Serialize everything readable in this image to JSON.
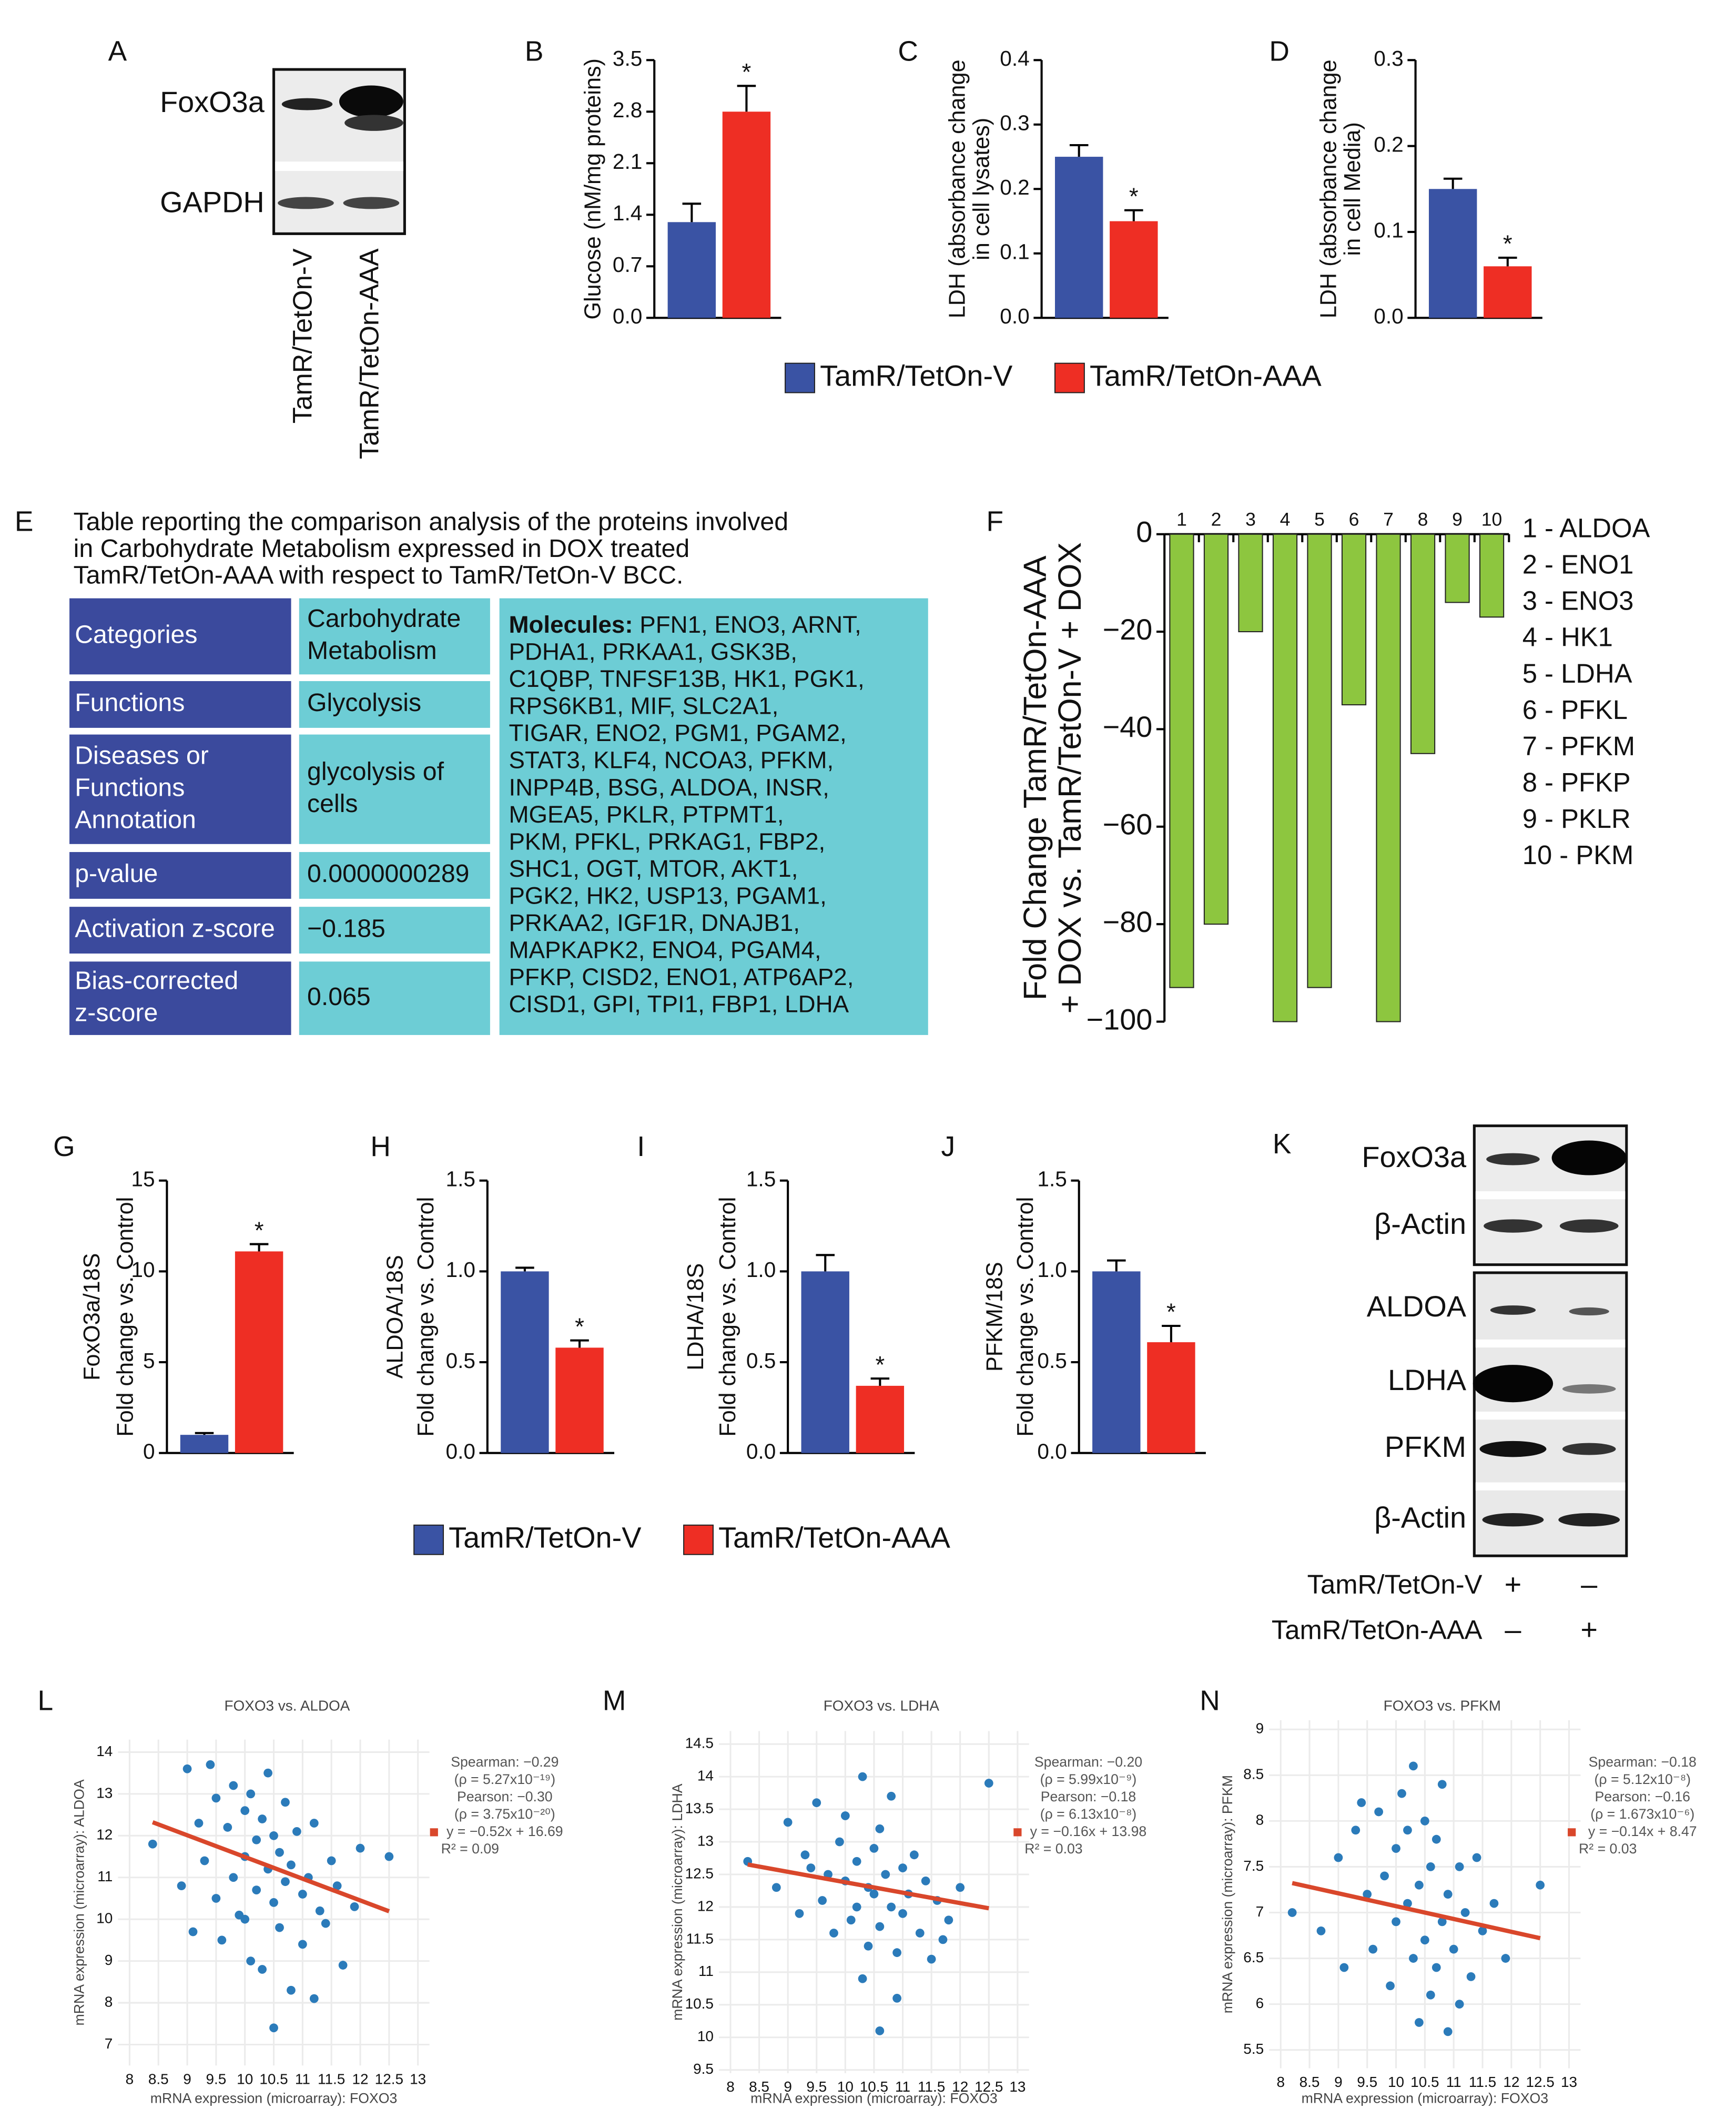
{
  "legend": [
    {
      "name": "TamR/TetOn-V",
      "color": "#3a53a4"
    },
    {
      "name": "TamR/TetOn-AAA",
      "color": "#ee2e24"
    }
  ],
  "blot_a": {
    "label": "A",
    "bands": [
      "FoxO3a",
      "GAPDH"
    ]
  },
  "blot_k": {
    "label": "K",
    "bands": [
      "FoxO3a",
      "β-Actin",
      "ALDOA",
      "LDHA",
      "PFKM",
      "β-Actin"
    ],
    "signs": [
      [
        "+",
        "–"
      ],
      [
        "–",
        "+"
      ]
    ]
  },
  "table": {
    "label": "E",
    "caption": [
      "Table reporting the comparison analysis of the proteins involved",
      "in Carbohydrate Metabolism expressed in DOX treated",
      "TamR/TetOn-AAA with respect to TamR/TetOn-V BCC."
    ],
    "rows": [
      {
        "name": [
          "Categories"
        ],
        "value": [
          "Carbohydrate",
          "Metabolism"
        ]
      },
      {
        "name": [
          "Functions"
        ],
        "value": [
          "Glycolysis"
        ]
      },
      {
        "name": [
          "Diseases or",
          "Functions",
          "Annotation"
        ],
        "value": [
          "glycolysis of",
          "cells"
        ]
      },
      {
        "name": [
          "p-value"
        ],
        "value": [
          "0.0000000289"
        ]
      },
      {
        "name": [
          "Activation z-score"
        ],
        "value": [
          "−0.185"
        ]
      },
      {
        "name": [
          "Bias-corrected",
          "z-score"
        ],
        "value": [
          "0.065"
        ]
      }
    ],
    "molecules_heading": "Molecules:",
    "molecules": [
      " PFN1, ENO3, ARNT,",
      "PDHA1, PRKAA1, GSK3B,",
      "C1QBP, TNFSF13B, HK1, PGK1,",
      "RPS6KB1,  MIF, SLC2A1,",
      "TIGAR, ENO2, PGM1, PGAM2,",
      "STAT3, KLF4, NCOA3, PFKM,",
      "INPP4B, BSG,  ALDOA, INSR,",
      "MGEA5, PKLR, PTPMT1,",
      "PKM, PFKL, PRKAG1, FBP2,",
      "SHC1, OGT, MTOR, AKT1,",
      "PGK2, HK2, USP13, PGAM1,",
      "PRKAA2, IGF1R, DNAJB1,",
      "MAPKAPK2, ENO4, PGAM4,",
      "PFKP, CISD2, ENO1, ATP6AP2,",
      "CISD1, GPI, TPI1, FBP1, LDHA"
    ]
  },
  "chart_data": [
    {
      "type": "bar",
      "label": "B",
      "ylabel": [
        "Glucose (nM/mg proteins)"
      ],
      "values": [
        1.3,
        2.8
      ],
      "errors": [
        0.25,
        0.35
      ],
      "annotation": "*",
      "ylim": [
        0,
        3.5
      ],
      "yticks": [
        {
          "value": 0,
          "label": "0.0"
        },
        0.7,
        1.4,
        2.1,
        2.8,
        3.5
      ]
    },
    {
      "type": "bar",
      "label": "C",
      "ylabel": [
        "LDH (absorbance change",
        "in cell lysates)"
      ],
      "values": [
        0.25,
        0.15
      ],
      "errors": [
        0.018,
        0.017
      ],
      "annotation": "*",
      "ylim": [
        0,
        0.4
      ],
      "yticks": [
        {
          "value": 0,
          "label": "0.0"
        },
        0.1,
        0.2,
        0.3,
        0.4
      ]
    },
    {
      "type": "bar",
      "label": "D",
      "ylabel": [
        "LDH (absorbance change",
        "in cell Media)"
      ],
      "values": [
        0.15,
        0.06
      ],
      "errors": [
        0.012,
        0.01
      ],
      "annotation": "*",
      "ylim": [
        0,
        0.3
      ],
      "yticks": [
        {
          "value": 0,
          "label": "0.0"
        },
        0.1,
        0.2,
        0.3
      ]
    },
    {
      "type": "bar",
      "label": "F",
      "ylabel": [
        "Fold Change TamR/TetOn-AAA",
        "+ DOX vs. TamR/TetOn-V + DOX"
      ],
      "categories": [
        "1",
        "2",
        "3",
        "4",
        "5",
        "6",
        "7",
        "8",
        "9",
        "10"
      ],
      "values": [
        -93,
        -80,
        -20,
        -100,
        -93,
        -35,
        -100,
        -45,
        -14,
        -17
      ],
      "color": "#8dc63f",
      "key": [
        "1 - ALDOA",
        "2 - ENO1",
        "3 - ENO3",
        "4 - HK1",
        "5 - LDHA",
        "6 - PFKL",
        "7 - PFKM",
        "8 - PFKP",
        "9 - PKLR",
        "10 - PKM"
      ],
      "ylim": [
        -100,
        0
      ],
      "yticks": [
        0,
        {
          "value": -20,
          "label": "−20"
        },
        {
          "value": -40,
          "label": "−40"
        },
        {
          "value": -60,
          "label": "−60"
        },
        {
          "value": -80,
          "label": "−80"
        },
        {
          "value": -100,
          "label": "−100"
        }
      ]
    },
    {
      "type": "bar",
      "label": "G",
      "ylabel": [
        "FoxO3a/18S",
        "Fold change vs. Control"
      ],
      "values": [
        1.0,
        11.1
      ],
      "errors": [
        0.1,
        0.4
      ],
      "annotation": "*",
      "ylim": [
        0,
        15
      ],
      "yticks": [
        0,
        5,
        10,
        15
      ]
    },
    {
      "type": "bar",
      "label": "H",
      "ylabel": [
        "ALDOA/18S",
        "Fold change vs. Control"
      ],
      "values": [
        1.0,
        0.58
      ],
      "errors": [
        0.02,
        0.04
      ],
      "annotation": "*",
      "ylim": [
        0,
        1.5
      ],
      "yticks": [
        {
          "value": 0,
          "label": "0.0"
        },
        0.5,
        {
          "value": 1,
          "label": "1.0"
        },
        1.5
      ]
    },
    {
      "type": "bar",
      "label": "I",
      "ylabel": [
        "LDHA/18S",
        "Fold change vs. Control"
      ],
      "values": [
        1.0,
        0.37
      ],
      "errors": [
        0.09,
        0.04
      ],
      "annotation": "*",
      "ylim": [
        0,
        1.5
      ],
      "yticks": [
        {
          "value": 0,
          "label": "0.0"
        },
        0.5,
        {
          "value": 1,
          "label": "1.0"
        },
        1.5
      ]
    },
    {
      "type": "bar",
      "label": "J",
      "ylabel": [
        "PFKM/18S",
        "Fold change vs. Control"
      ],
      "values": [
        1.0,
        0.61
      ],
      "errors": [
        0.06,
        0.09
      ],
      "annotation": "*",
      "ylim": [
        0,
        1.5
      ],
      "yticks": [
        {
          "value": 0,
          "label": "0.0"
        },
        0.5,
        {
          "value": 1,
          "label": "1.0"
        },
        1.5
      ]
    },
    {
      "type": "scatter",
      "label": "L",
      "title": "FOXO3 vs. ALDOA",
      "xlabel": "mRNA expression (microarray): FOXO3",
      "ylabel": "mRNA expression (microarray): ALDOA",
      "color": "#2b7bba",
      "grid": true,
      "x": [
        8.4,
        8.9,
        9.0,
        9.2,
        9.3,
        9.4,
        9.5,
        9.5,
        9.6,
        9.7,
        9.8,
        9.8,
        9.9,
        10.0,
        10.0,
        10.1,
        10.1,
        10.2,
        10.2,
        10.3,
        10.3,
        10.4,
        10.4,
        10.5,
        10.5,
        10.6,
        10.6,
        10.7,
        10.7,
        10.8,
        10.8,
        10.9,
        11.0,
        11.0,
        11.1,
        11.2,
        11.3,
        11.4,
        11.5,
        11.6,
        11.7,
        11.9,
        12.0,
        12.5,
        10.5,
        9.1,
        11.2,
        10.0
      ],
      "values": [
        11.8,
        10.8,
        13.6,
        12.3,
        11.4,
        13.7,
        12.9,
        10.5,
        9.5,
        12.2,
        11.0,
        13.2,
        10.1,
        12.6,
        11.5,
        9.0,
        13.0,
        11.9,
        10.7,
        12.4,
        8.8,
        11.2,
        13.5,
        10.4,
        12.0,
        11.6,
        9.8,
        12.8,
        10.9,
        11.3,
        8.3,
        12.1,
        10.6,
        9.4,
        11.0,
        12.3,
        10.2,
        9.9,
        11.4,
        10.8,
        8.9,
        10.3,
        11.7,
        11.5,
        7.4,
        9.7,
        8.1,
        10.0
      ],
      "fit": {
        "slope": -0.52,
        "intercept": 16.69,
        "label": "y = −0.52x + 16.69",
        "color": "#d9472b"
      },
      "stats": [
        "Spearman: −0.29",
        "(ρ = 5.27x10⁻¹⁹)",
        "Pearson: −0.30",
        "(ρ = 3.75x10⁻²⁰)"
      ],
      "r_squared": "R² = 0.09",
      "xlim": [
        7.8,
        13.2
      ],
      "xticks": [
        8,
        8.5,
        9,
        9.5,
        10,
        10.5,
        11,
        11.5,
        12,
        12.5,
        13
      ],
      "ylim": [
        6.5,
        14.3
      ],
      "yticks": [
        7,
        8,
        9,
        10,
        11,
        12,
        13,
        14
      ]
    },
    {
      "type": "scatter",
      "label": "M",
      "title": "FOXO3 vs. LDHA",
      "xlabel": "mRNA expression (microarray): FOXO3",
      "ylabel": "mRNA expression (microarray): LDHA",
      "color": "#2b7bba",
      "grid": true,
      "x": [
        8.3,
        8.8,
        9.0,
        9.2,
        9.3,
        9.5,
        9.6,
        9.7,
        9.8,
        9.9,
        10.0,
        10.0,
        10.1,
        10.2,
        10.2,
        10.3,
        10.4,
        10.4,
        10.5,
        10.5,
        10.6,
        10.6,
        10.7,
        10.8,
        10.8,
        10.9,
        11.0,
        11.0,
        11.1,
        11.2,
        11.3,
        11.4,
        11.5,
        11.6,
        11.8,
        12.0,
        12.5,
        10.3,
        10.6,
        9.4,
        11.7,
        10.9
      ],
      "values": [
        12.7,
        12.3,
        13.3,
        11.9,
        12.8,
        13.6,
        12.1,
        12.5,
        11.6,
        13.0,
        12.4,
        13.4,
        11.8,
        12.7,
        12.0,
        14.0,
        12.3,
        11.4,
        12.9,
        12.2,
        13.2,
        11.7,
        12.5,
        12.0,
        13.7,
        11.3,
        12.6,
        11.9,
        12.2,
        12.8,
        11.6,
        12.4,
        11.2,
        12.1,
        11.8,
        12.3,
        13.9,
        10.9,
        10.1,
        12.6,
        11.5,
        10.6
      ],
      "fit": {
        "slope": -0.16,
        "intercept": 13.98,
        "label": "y = −0.16x + 13.98",
        "color": "#d9472b"
      },
      "stats": [
        "Spearman: −0.20",
        "(ρ = 5.99x10⁻⁹)",
        "Pearson: −0.18",
        "(ρ = 6.13x10⁻⁸)"
      ],
      "r_squared": "R² = 0.03",
      "xlim": [
        7.8,
        13.2
      ],
      "xticks": [
        8,
        8.5,
        9,
        9.5,
        10,
        10.5,
        11,
        11.5,
        12,
        12.5,
        13
      ],
      "ylim": [
        9.45,
        14.7
      ],
      "yticks": [
        9.5,
        10,
        10.5,
        11,
        11.5,
        12,
        12.5,
        13,
        13.5,
        14,
        14.5
      ]
    },
    {
      "type": "scatter",
      "label": "N",
      "title": "FOXO3 vs. PFKM",
      "xlabel": "mRNA expression (microarray): FOXO3",
      "ylabel": "mRNA expression (microarray): PFKM",
      "color": "#2b7bba",
      "grid": true,
      "x": [
        8.2,
        8.7,
        9.0,
        9.1,
        9.3,
        9.5,
        9.6,
        9.7,
        9.8,
        9.9,
        10.0,
        10.0,
        10.1,
        10.2,
        10.3,
        10.3,
        10.4,
        10.5,
        10.5,
        10.6,
        10.6,
        10.7,
        10.8,
        10.8,
        10.9,
        11.0,
        11.1,
        11.2,
        11.3,
        11.4,
        11.5,
        11.7,
        11.9,
        12.5,
        10.4,
        10.9,
        9.4,
        11.1,
        10.2,
        10.7
      ],
      "values": [
        7.0,
        6.8,
        7.6,
        6.4,
        7.9,
        7.2,
        6.6,
        8.1,
        7.4,
        6.2,
        7.7,
        6.9,
        8.3,
        7.1,
        6.5,
        8.6,
        7.3,
        6.7,
        8.0,
        7.5,
        6.1,
        7.8,
        6.9,
        8.4,
        7.2,
        6.6,
        7.5,
        7.0,
        6.3,
        7.6,
        6.8,
        7.1,
        6.5,
        7.3,
        5.8,
        5.7,
        8.2,
        6.0,
        7.9,
        6.4
      ],
      "fit": {
        "slope": -0.14,
        "intercept": 8.47,
        "label": "y = −0.14x + 8.47",
        "color": "#d9472b"
      },
      "stats": [
        "Spearman: −0.18",
        "(ρ = 5.12x10⁻⁸)",
        "Pearson: −0.16",
        "(ρ = 1.673x10⁻⁶)"
      ],
      "r_squared": "R² = 0.03",
      "xlim": [
        7.8,
        13.2
      ],
      "xticks": [
        8,
        8.5,
        9,
        9.5,
        10,
        10.5,
        11,
        11.5,
        12,
        12.5,
        13
      ],
      "ylim": [
        5.3,
        9.1
      ],
      "yticks": [
        5.5,
        6,
        6.5,
        7,
        7.5,
        8,
        8.5,
        9
      ]
    }
  ]
}
